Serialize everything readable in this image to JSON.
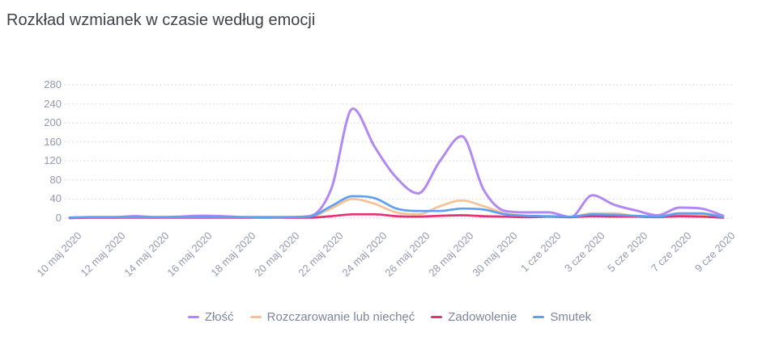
{
  "page": {
    "title": "Rozkład wzmianek w czasie według emocji"
  },
  "chart_data": {
    "type": "line",
    "title": "Rozkład wzmianek w czasie według emocji",
    "xlabel": "",
    "ylabel": "",
    "ylim": [
      0,
      280
    ],
    "yticks": [
      0,
      40,
      80,
      120,
      160,
      200,
      240,
      280
    ],
    "grid": "horizontal-dotted",
    "grid_color": "#dcdce1",
    "tick_label_color": "#9398ae",
    "legend_position": "bottom-center",
    "x": [
      "10 maj 2020",
      "11 maj 2020",
      "12 maj 2020",
      "13 maj 2020",
      "14 maj 2020",
      "15 maj 2020",
      "16 maj 2020",
      "17 maj 2020",
      "18 maj 2020",
      "19 maj 2020",
      "20 maj 2020",
      "21 maj 2020",
      "22 maj 2020",
      "23 maj 2020",
      "24 maj 2020",
      "25 maj 2020",
      "26 maj 2020",
      "27 maj 2020",
      "28 maj 2020",
      "29 maj 2020",
      "30 maj 2020",
      "31 maj 2020",
      "1 cze 2020",
      "2 cze 2020",
      "3 cze 2020",
      "4 cze 2020",
      "5 cze 2020",
      "6 cze 2020",
      "7 cze 2020",
      "8 cze 2020",
      "9 cze 2020"
    ],
    "x_tick_labels": [
      "10 maj 2020",
      "12 maj 2020",
      "14 maj 2020",
      "16 maj 2020",
      "18 maj 2020",
      "20 maj 2020",
      "22 maj 2020",
      "24 maj 2020",
      "26 maj 2020",
      "28 maj 2020",
      "30 maj 2020",
      "1 cze 2020",
      "3 cze 2020",
      "5 cze 2020",
      "7 cze 2020",
      "9 cze 2020"
    ],
    "x_tick_every": 2,
    "series": [
      {
        "name": "Złość",
        "color": "#b289f2",
        "values": [
          1,
          2,
          2,
          4,
          2,
          3,
          5,
          4,
          2,
          2,
          2,
          4,
          60,
          230,
          150,
          85,
          52,
          120,
          172,
          60,
          15,
          12,
          12,
          2,
          48,
          28,
          16,
          6,
          22,
          20,
          5
        ]
      },
      {
        "name": "Rozczarowanie lub niechęć",
        "color": "#f7c195",
        "values": [
          1,
          1,
          1,
          2,
          1,
          2,
          2,
          2,
          1,
          1,
          1,
          2,
          20,
          40,
          30,
          12,
          8,
          25,
          37,
          25,
          10,
          4,
          3,
          2,
          10,
          10,
          4,
          2,
          7,
          7,
          2
        ]
      },
      {
        "name": "Zadowolenie",
        "color": "#e43272",
        "values": [
          0,
          1,
          1,
          1,
          1,
          1,
          1,
          1,
          1,
          1,
          1,
          1,
          4,
          8,
          8,
          4,
          3,
          5,
          6,
          4,
          3,
          2,
          3,
          2,
          4,
          3,
          3,
          2,
          4,
          3,
          1
        ]
      },
      {
        "name": "Smutek",
        "color": "#5da0f2",
        "values": [
          1,
          2,
          2,
          2,
          2,
          2,
          2,
          2,
          2,
          1,
          2,
          3,
          25,
          46,
          42,
          20,
          15,
          15,
          20,
          18,
          8,
          5,
          4,
          3,
          8,
          7,
          5,
          3,
          10,
          10,
          2
        ]
      }
    ]
  }
}
